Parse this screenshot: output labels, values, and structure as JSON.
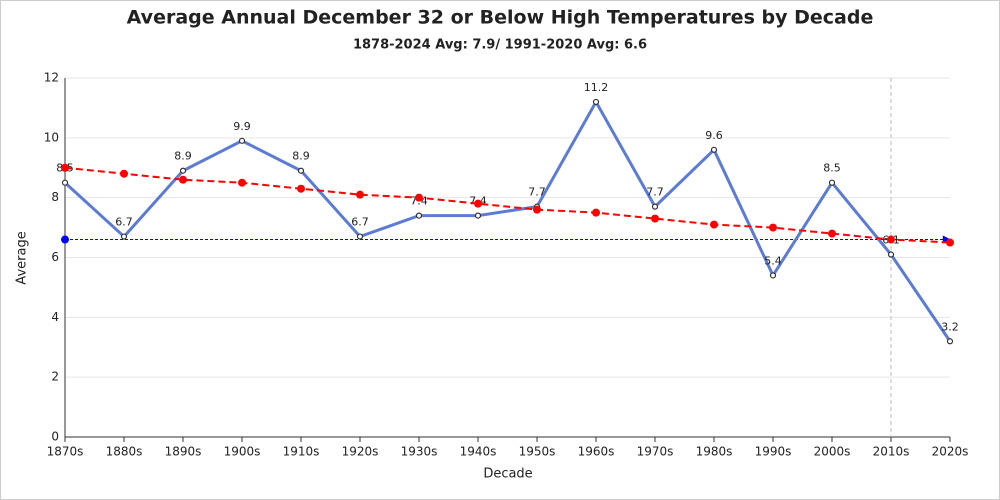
{
  "chart_data": {
    "type": "line",
    "title": "Average Annual December 32 or Below High Temperatures by Decade",
    "subtitle": "1878-2024 Avg: 7.9/ 1991-2020 Avg: 6.6",
    "x_label": "Decade",
    "y_label": "Average",
    "categories": [
      "1870s",
      "1880s",
      "1890s",
      "1900s",
      "1910s",
      "1920s",
      "1930s",
      "1940s",
      "1950s",
      "1960s",
      "1970s",
      "1980s",
      "1990s",
      "2000s",
      "2010s",
      "2020s"
    ],
    "series": [
      {
        "color": "#5b7bd5",
        "values": [
          8.5,
          6.7,
          8.9,
          9.9,
          8.9,
          6.7,
          7.4,
          7.4,
          7.7,
          11.2,
          7.7,
          9.6,
          5.4,
          8.5,
          6.1,
          3.2
        ]
      },
      {
        "color": "#ff0000",
        "values": [
          9.0,
          8.8,
          8.6,
          8.5,
          8.3,
          8.1,
          8.0,
          7.8,
          7.6,
          7.5,
          7.3,
          7.1,
          7.0,
          6.8,
          6.6,
          6.5
        ]
      }
    ],
    "reference_line": {
      "value": 6.6,
      "color": "#0000ff"
    },
    "vline_at": "2010s",
    "ylim": [
      0,
      12
    ],
    "yticks": [
      0,
      2,
      4,
      6,
      8,
      10,
      12
    ],
    "grid": true
  }
}
